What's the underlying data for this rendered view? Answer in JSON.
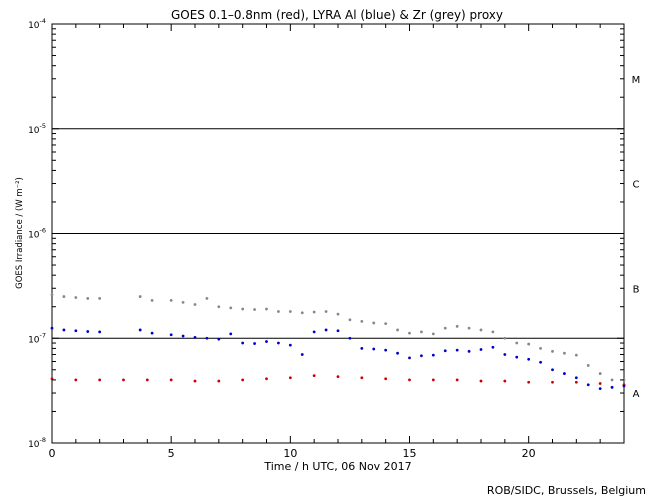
{
  "chart_data": {
    "type": "scatter",
    "title": "GOES 0.1–0.8nm (red), LYRA Al (blue) & Zr (grey) proxy",
    "xlabel": "Time / h UTC, 06 Nov 2017",
    "ylabel": "GOES Irradiance / (W m⁻²)",
    "xlim": [
      0,
      24
    ],
    "ylim": [
      1e-08,
      0.0001
    ],
    "yscale": "log",
    "x_ticks": [
      0,
      5,
      10,
      15,
      20
    ],
    "x_tick_labels": [
      "0",
      "5",
      "10",
      "15",
      "20"
    ],
    "y_ticks": [
      1e-08,
      1e-07,
      1e-06,
      1e-05,
      0.0001
    ],
    "y_tick_labels": [
      {
        "base": "10",
        "exp": "-8"
      },
      {
        "base": "10",
        "exp": "-7"
      },
      {
        "base": "10",
        "exp": "-6"
      },
      {
        "base": "10",
        "exp": "-5"
      },
      {
        "base": "10",
        "exp": "-4"
      }
    ],
    "flare_class_lines": [
      1e-07,
      1e-06,
      1e-05
    ],
    "flare_classes": [
      {
        "label": "M",
        "y": 3e-05
      },
      {
        "label": "C",
        "y": 3e-06
      },
      {
        "label": "B",
        "y": 3e-07
      },
      {
        "label": "A",
        "y": 3e-08
      }
    ],
    "grid": false,
    "series": [
      {
        "color": "#cc0000",
        "x": [
          0,
          1,
          2,
          3,
          4,
          5,
          6,
          7,
          8,
          9,
          10,
          11,
          12,
          13,
          14,
          15,
          16,
          17,
          18,
          19,
          20,
          21,
          22,
          23,
          24
        ],
        "y": [
          4.1e-08,
          4e-08,
          4e-08,
          4e-08,
          4e-08,
          4e-08,
          3.9e-08,
          3.9e-08,
          4e-08,
          4.1e-08,
          4.2e-08,
          4.4e-08,
          4.3e-08,
          4.2e-08,
          4.1e-08,
          4e-08,
          4e-08,
          4e-08,
          3.9e-08,
          3.9e-08,
          3.8e-08,
          3.8e-08,
          3.8e-08,
          3.7e-08,
          3.6e-08
        ]
      },
      {
        "color": "#0000cc",
        "x": [
          0,
          0.5,
          1,
          1.5,
          2,
          3.7,
          4.2,
          5,
          5.5,
          6,
          6.5,
          7,
          7.5,
          8,
          8.5,
          9,
          9.5,
          10,
          10.5,
          11,
          11.5,
          12,
          12.5,
          13,
          13.5,
          14,
          14.5,
          15,
          15.5,
          16,
          16.5,
          17,
          17.5,
          18,
          18.5,
          19,
          19.5,
          20,
          20.5,
          21,
          21.5,
          22,
          22.5,
          23,
          23.5,
          24
        ],
        "y": [
          1.25e-07,
          1.2e-07,
          1.18e-07,
          1.16e-07,
          1.15e-07,
          1.2e-07,
          1.12e-07,
          1.08e-07,
          1.05e-07,
          1.02e-07,
          1e-07,
          9.8e-08,
          1.1e-07,
          9e-08,
          8.9e-08,
          9.3e-08,
          9e-08,
          8.6e-08,
          7e-08,
          1.15e-07,
          1.2e-07,
          1.18e-07,
          1e-07,
          8e-08,
          7.9e-08,
          7.7e-08,
          7.2e-08,
          6.5e-08,
          6.8e-08,
          6.9e-08,
          7.6e-08,
          7.7e-08,
          7.5e-08,
          7.8e-08,
          8.2e-08,
          7e-08,
          6.6e-08,
          6.3e-08,
          5.9e-08,
          5e-08,
          4.6e-08,
          4.2e-08,
          3.6e-08,
          3.3e-08,
          3.4e-08,
          3.5e-08
        ]
      },
      {
        "color": "#888888",
        "x": [
          0,
          0.5,
          1,
          1.5,
          2,
          3.7,
          4.2,
          5,
          5.5,
          6,
          6.5,
          7,
          7.5,
          8,
          8.5,
          9,
          9.5,
          10,
          10.5,
          11,
          11.5,
          12,
          12.5,
          13,
          13.5,
          14,
          14.5,
          15,
          15.5,
          16,
          16.5,
          17,
          17.5,
          18,
          18.5,
          19,
          19.5,
          20,
          20.5,
          21,
          21.5,
          22,
          22.5,
          23,
          23.5,
          24
        ],
        "y": [
          2.6e-07,
          2.5e-07,
          2.45e-07,
          2.4e-07,
          2.4e-07,
          2.5e-07,
          2.3e-07,
          2.3e-07,
          2.2e-07,
          2.1e-07,
          2.4e-07,
          2e-07,
          1.95e-07,
          1.9e-07,
          1.88e-07,
          1.9e-07,
          1.8e-07,
          1.8e-07,
          1.75e-07,
          1.78e-07,
          1.8e-07,
          1.7e-07,
          1.5e-07,
          1.45e-07,
          1.4e-07,
          1.38e-07,
          1.2e-07,
          1.12e-07,
          1.15e-07,
          1.1e-07,
          1.25e-07,
          1.3e-07,
          1.25e-07,
          1.2e-07,
          1.15e-07,
          1e-07,
          9e-08,
          8.8e-08,
          8e-08,
          7.5e-08,
          7.2e-08,
          6.9e-08,
          5.5e-08,
          4.6e-08,
          4e-08,
          4e-08
        ]
      }
    ]
  },
  "credit": "ROB/SIDC, Brussels, Belgium"
}
